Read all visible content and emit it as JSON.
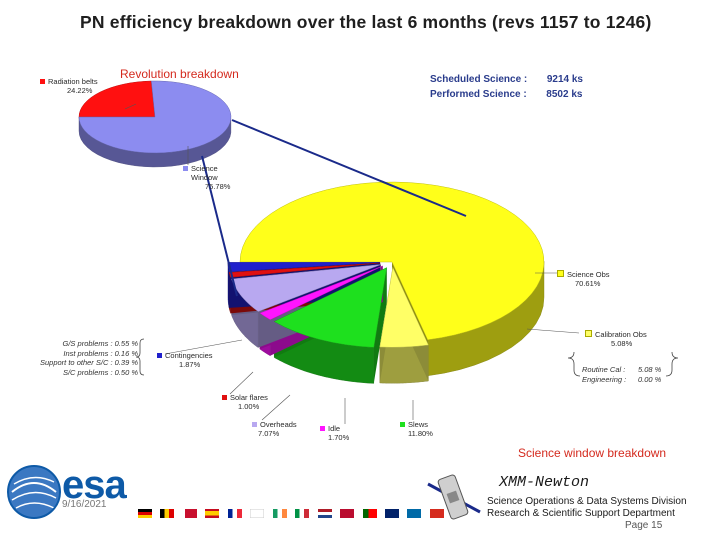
{
  "title": "PN efficiency breakdown over the last 6 months (revs 1157 to 1246)",
  "summary": {
    "scheduled_label": "Scheduled Science :",
    "scheduled_value": "9214",
    "scheduled_unit": "ks",
    "performed_label": "Performed Science :",
    "performed_value": "8502",
    "performed_unit": "ks"
  },
  "chart_data": [
    {
      "type": "pie",
      "title": "Revolution breakdown",
      "slices": [
        {
          "label": "Radiation belts",
          "value": 24.22,
          "value_text": "24.22%",
          "color": "#ff1010"
        },
        {
          "label": "Science Window",
          "value": 75.78,
          "value_text": "75.78%",
          "color": "#8c8cf0"
        }
      ]
    },
    {
      "type": "pie",
      "title": "Science window breakdown",
      "slices": [
        {
          "label": "Science Obs",
          "value": 70.61,
          "value_text": "70.61%",
          "color": "#ffff1a"
        },
        {
          "label": "Calibration Obs",
          "value": 5.08,
          "value_text": "5.08%",
          "color": "#ffff66"
        },
        {
          "label": "Slews",
          "value": 11.8,
          "value_text": "11.80%",
          "color": "#1ee01e"
        },
        {
          "label": "Idle",
          "value": 1.7,
          "value_text": "1.70%",
          "color": "#ff14ff"
        },
        {
          "label": "Overheads",
          "value": 7.07,
          "value_text": "7.07%",
          "color": "#b8a8f0"
        },
        {
          "label": "Solar flares",
          "value": 1.0,
          "value_text": "1.00%",
          "color": "#e01010"
        },
        {
          "label": "Contingencies",
          "value": 1.87,
          "value_text": "1.87%",
          "color": "#2020cc"
        }
      ],
      "calibration_detail": [
        {
          "label": "Routine Cal :",
          "value": "5.08 %"
        },
        {
          "label": "Engineering :",
          "value": "0.00 %"
        }
      ],
      "contingency_detail": [
        {
          "label": "G/S problems :",
          "value": "0.55 %"
        },
        {
          "label": "Inst problems :",
          "value": "0.16 %"
        },
        {
          "label": "Support to other S/C :",
          "value": "0.39 %"
        },
        {
          "label": "S/C problems :",
          "value": "0.50 %"
        }
      ]
    }
  ],
  "colors": {
    "title_red": "#d42a1e",
    "summary_blue": "#2a3c8c",
    "esa_blue": "#0e5aa7"
  },
  "footer": {
    "logo_text": "esa",
    "date": "9/16/2021",
    "mission": "XMM-Newton",
    "division": "Science Operations & Data Systems Division",
    "department": "Research & Scientific Support Department",
    "page": "Page 15"
  },
  "icons": {
    "logo": "esa-swirl-icon",
    "satellite": "satellite-icon"
  }
}
